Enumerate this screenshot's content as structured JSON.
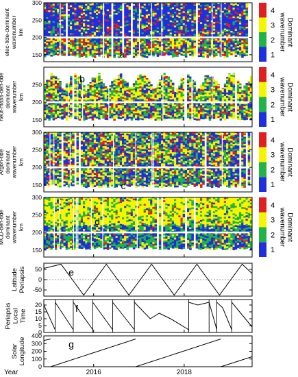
{
  "chart_data": [
    {
      "type": "heatmap",
      "panel_letter": "a",
      "ylabel_lines": [
        "elec-tide-dominant",
        "wavenumber",
        "km"
      ],
      "yticks": [
        150,
        200,
        250,
        300
      ],
      "ylim": [
        130,
        300
      ],
      "colorbar": {
        "title_lines": [
          "Dominant",
          "wavenumber"
        ],
        "ticks": [
          "1",
          "2",
          "3",
          "4"
        ],
        "colors": [
          "#1f2fe0",
          "#22b347",
          "#f5f500",
          "#e0201e"
        ]
      },
      "pattern": {
        "seed": 11,
        "weights_high": [
          0.66,
          0.12,
          0.12,
          0.1
        ],
        "weights_low": [
          0.28,
          0.27,
          0.27,
          0.18
        ],
        "top": 300,
        "bottom_base": 140,
        "bottom_amp": 12,
        "split": 200
      }
    },
    {
      "type": "heatmap",
      "panel_letter": "b",
      "ylabel_lines": [
        "neut-mass-den-tide",
        "dominant",
        "wavenumber",
        "km"
      ],
      "yticks": [
        150,
        200,
        250
      ],
      "ylim": [
        130,
        300
      ],
      "colorbar": {
        "title_lines": [
          "Dominant",
          "wavenumber"
        ],
        "ticks": [
          "1",
          "2",
          "3",
          "4"
        ],
        "colors": [
          "#1f2fe0",
          "#22b347",
          "#f5f500",
          "#e0201e"
        ]
      },
      "pattern": {
        "seed": 23,
        "weights_high": [
          0.18,
          0.34,
          0.38,
          0.1
        ],
        "weights_low": [
          0.3,
          0.26,
          0.32,
          0.12
        ],
        "top_base": 240,
        "top_amp": 45,
        "bottom_base": 148,
        "bottom_amp": 8
      }
    },
    {
      "type": "heatmap",
      "panel_letter": "c",
      "ylabel_lines": [
        "Argon-tide",
        "dominant",
        "wavenumber",
        "km"
      ],
      "yticks": [
        150,
        200,
        250,
        300
      ],
      "ylim": [
        130,
        300
      ],
      "colorbar": {
        "title_lines": [
          "Dominant",
          "wavenumber"
        ],
        "ticks": [
          "1",
          "2",
          "3",
          "4"
        ],
        "colors": [
          "#1f2fe0",
          "#22b347",
          "#f5f500",
          "#e0201e"
        ]
      },
      "pattern": {
        "seed": 37,
        "weights_high": [
          0.34,
          0.24,
          0.28,
          0.14
        ],
        "weights_low": [
          0.36,
          0.28,
          0.26,
          0.1
        ],
        "top": 300,
        "bottom_base": 142,
        "bottom_amp": 10
      }
    },
    {
      "type": "heatmap",
      "panel_letter": "d",
      "ylabel_lines": [
        "MCD-den-tide",
        "dominant",
        "wavenumber",
        "km"
      ],
      "yticks": [
        150,
        200,
        250,
        300
      ],
      "ylim": [
        130,
        300
      ],
      "colorbar": {
        "title_lines": [
          "Dominant",
          "wavenumber"
        ],
        "ticks": [
          "1",
          "2",
          "3",
          "4"
        ],
        "colors": [
          "#1f2fe0",
          "#22b347",
          "#f5f500",
          "#e0201e"
        ]
      },
      "pattern": {
        "seed": 53,
        "weights_high": [
          0.05,
          0.22,
          0.68,
          0.05
        ],
        "weights_low": [
          0.38,
          0.4,
          0.17,
          0.05
        ],
        "top": 300,
        "bottom_base": 150,
        "bottom_amp": 8,
        "split": 220
      }
    },
    {
      "type": "line",
      "panel_letter": "e",
      "ylabel_lines": [
        "Latitude",
        "Periapsis"
      ],
      "yticks": [
        -50,
        0,
        50
      ],
      "ylim": [
        -80,
        80
      ],
      "zero_line": true,
      "x": [
        2014.9,
        2015.28,
        2015.78,
        2016.28,
        2016.78,
        2017.28,
        2017.78,
        2018.28,
        2018.78,
        2019.28,
        2019.5
      ],
      "y": [
        55,
        75,
        -75,
        75,
        -75,
        75,
        -75,
        75,
        -75,
        75,
        30
      ]
    },
    {
      "type": "line",
      "panel_letter": "f",
      "ylabel_lines": [
        "Periapsis",
        "Local",
        "Time"
      ],
      "yticks": [
        0,
        5,
        10,
        15,
        20
      ],
      "ylim": [
        0,
        24
      ],
      "resets": [
        2015.15,
        2015.55,
        2015.98,
        2016.42,
        2016.9,
        2018.1,
        2018.55,
        2018.72,
        2019.05
      ],
      "segments": [
        {
          "x": [
            2014.9,
            2015.15
          ],
          "y": [
            20,
            2
          ]
        },
        {
          "x": [
            2015.15,
            2015.55
          ],
          "y": [
            22,
            2
          ]
        },
        {
          "x": [
            2015.55,
            2015.98
          ],
          "y": [
            22,
            2
          ]
        },
        {
          "x": [
            2015.98,
            2016.42
          ],
          "y": [
            22,
            2
          ]
        },
        {
          "x": [
            2016.42,
            2016.9
          ],
          "y": [
            22,
            2
          ]
        },
        {
          "x": [
            2016.9,
            2017.25,
            2017.45,
            2017.7,
            2018.1
          ],
          "y": [
            22,
            10,
            14,
            10,
            2
          ]
        },
        {
          "x": [
            2018.1,
            2018.3,
            2018.55
          ],
          "y": [
            22,
            20,
            22
          ]
        },
        {
          "x": [
            2018.55,
            2018.72
          ],
          "y": [
            22,
            2
          ]
        },
        {
          "x": [
            2018.72,
            2018.85,
            2019.05
          ],
          "y": [
            22,
            18,
            2
          ]
        },
        {
          "x": [
            2019.05,
            2019.5
          ],
          "y": [
            22,
            4
          ]
        }
      ]
    },
    {
      "type": "line",
      "panel_letter": "g",
      "ylabel_lines": [
        "Solar",
        "Longitude"
      ],
      "yticks": [
        0,
        100,
        200,
        300,
        400
      ],
      "ylim": [
        0,
        400
      ],
      "segments": [
        {
          "x": [
            2014.9,
            2015.05
          ],
          "y": [
            340,
            360
          ]
        },
        {
          "x": [
            2015.05,
            2016.93
          ],
          "y": [
            0,
            360
          ]
        },
        {
          "x": [
            2016.93,
            2018.81
          ],
          "y": [
            0,
            360
          ]
        },
        {
          "x": [
            2018.81,
            2019.5
          ],
          "y": [
            0,
            130
          ]
        }
      ]
    }
  ],
  "x_axis": {
    "label": "Year",
    "xlim": [
      2014.9,
      2019.5
    ],
    "tick_labels": [
      {
        "x": 2016.0,
        "label": "2016"
      },
      {
        "x": 2018.0,
        "label": "2018"
      }
    ]
  }
}
